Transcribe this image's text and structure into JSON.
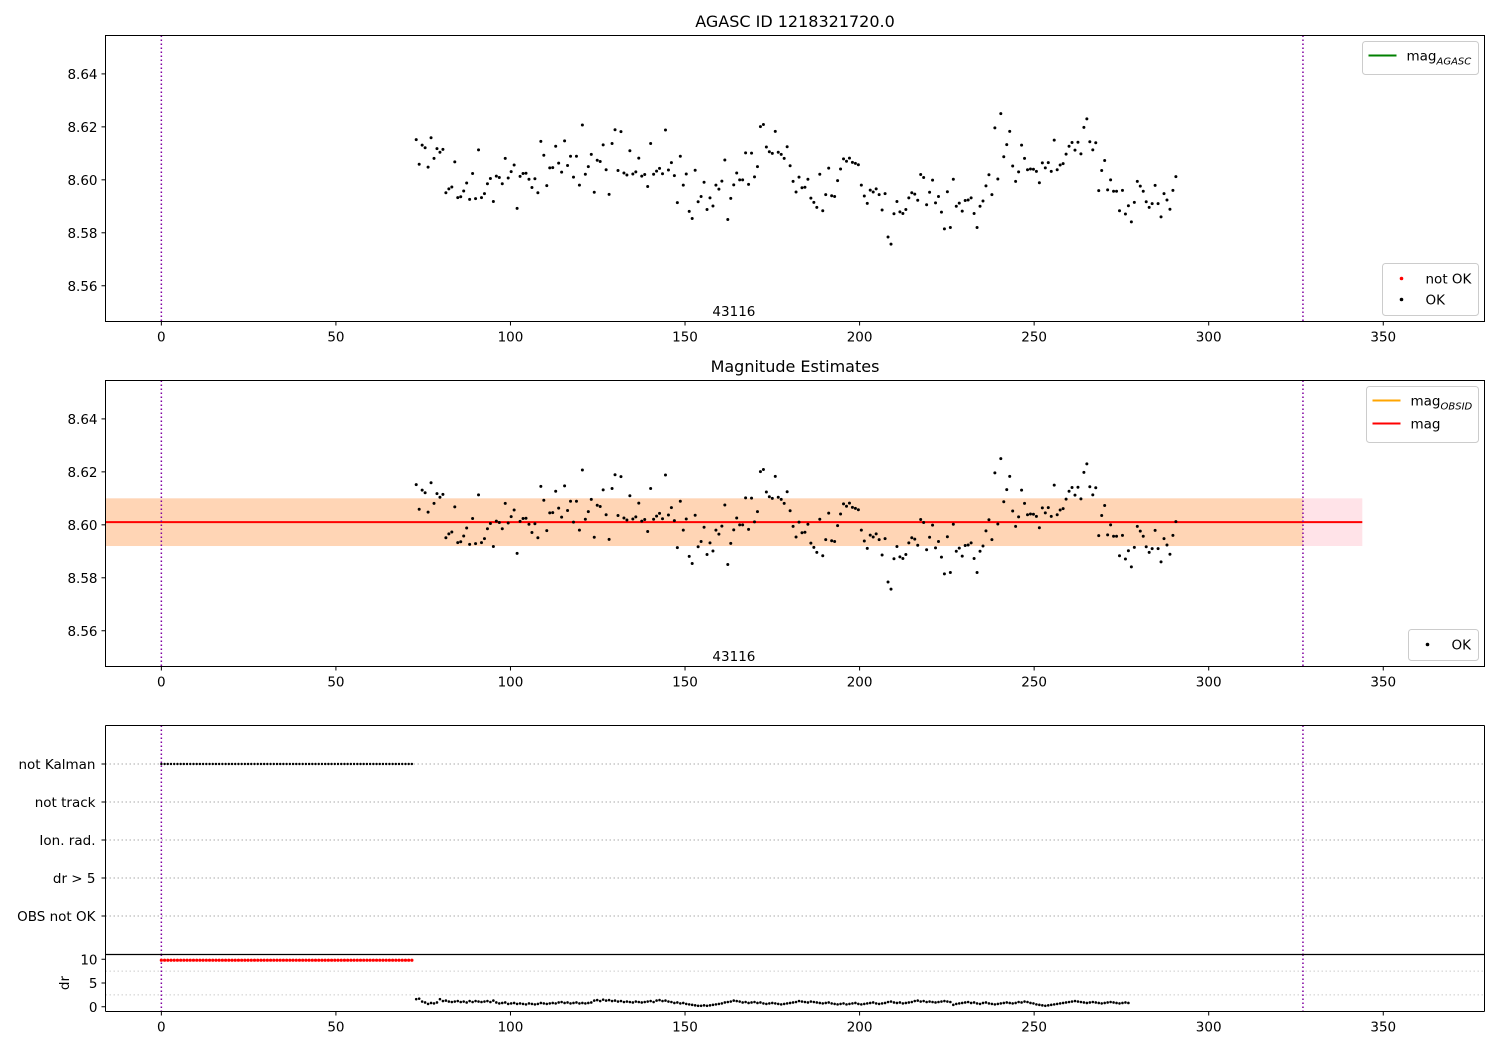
{
  "chart_data": [
    {
      "id": "top",
      "type": "scatter",
      "title": "AGASC ID 1218321720.0",
      "xlim": [
        -16,
        379
      ],
      "ylim": [
        8.5465,
        8.6545
      ],
      "xticks": [
        0,
        50,
        100,
        150,
        200,
        250,
        300,
        350
      ],
      "yticks": [
        8.56,
        8.58,
        8.6,
        8.62,
        8.64
      ],
      "ytick_labels": [
        "8.56",
        "8.58",
        "8.60",
        "8.62",
        "8.64"
      ],
      "vlines": [
        0,
        327
      ],
      "vline_color": "#8000a0",
      "annotation": {
        "text": "43116",
        "x": 164,
        "y": 8.5485
      },
      "legend_lines": [
        {
          "label_main": "mag",
          "label_sub": "AGASC",
          "color": "#008000"
        }
      ],
      "legend_points": [
        {
          "label": "not OK",
          "color": "#ff0000"
        },
        {
          "label": "OK",
          "color": "#000000"
        }
      ],
      "series": [
        {
          "name": "OK",
          "color": "#000000",
          "x_start": 73,
          "x_step": 0.85
        }
      ]
    },
    {
      "id": "middle",
      "type": "scatter",
      "title": "Magnitude Estimates",
      "xlim": [
        -16,
        379
      ],
      "ylim": [
        8.5465,
        8.6545
      ],
      "xticks": [
        0,
        50,
        100,
        150,
        200,
        250,
        300,
        350
      ],
      "yticks": [
        8.56,
        8.58,
        8.6,
        8.62,
        8.64
      ],
      "ytick_labels": [
        "8.56",
        "8.58",
        "8.60",
        "8.62",
        "8.64"
      ],
      "vlines": [
        0,
        327
      ],
      "vline_color": "#8000a0",
      "annotation": {
        "text": "43116",
        "x": 164,
        "y": 8.5485
      },
      "mag_line": {
        "y": 8.601,
        "x_range": [
          -16,
          344
        ],
        "color": "#ff0000"
      },
      "pink_band": {
        "y_range": [
          8.592,
          8.61
        ],
        "x_range": [
          -16,
          344
        ],
        "color": "#ffc0cb"
      },
      "orange_band": {
        "y_range": [
          8.592,
          8.61
        ],
        "x_range": [
          -16,
          327
        ],
        "color": "#ffa500"
      },
      "legend_lines": [
        {
          "label_main": "mag",
          "label_sub": "OBSID",
          "color": "#ffa500"
        },
        {
          "label_main": "mag",
          "label_sub": "",
          "color": "#ff0000"
        }
      ],
      "legend_points": [
        {
          "label": "OK",
          "color": "#000000"
        }
      ],
      "series": [
        {
          "name": "OK",
          "color": "#000000",
          "x_start": 73,
          "x_step": 0.85
        }
      ]
    },
    {
      "id": "flags",
      "type": "scatter",
      "categories": [
        "OBS not OK",
        "dr > 5",
        "Ion. rad.",
        "not track",
        "not Kalman"
      ],
      "xlim": [
        -16,
        379
      ],
      "vlines": [
        0,
        327
      ],
      "flag_points": {
        "category": "not Kalman",
        "x_range": [
          0,
          72.5
        ],
        "x_step": 0.92,
        "color": "#000000"
      }
    },
    {
      "id": "dr",
      "type": "scatter",
      "ylabel": "dr",
      "xlim": [
        -16,
        379
      ],
      "ylim": [
        -1,
        11
      ],
      "xticks": [
        0,
        50,
        100,
        150,
        200,
        250,
        300,
        350
      ],
      "yticks": [
        0,
        5,
        10
      ],
      "ytick_labels": [
        "0",
        "5",
        "10"
      ],
      "vlines": [
        0,
        327
      ],
      "clipped_points": {
        "y": 9.8,
        "x_range": [
          0,
          72.5
        ],
        "x_step": 0.92,
        "color": "#ff0000"
      },
      "series": [
        {
          "name": "dr",
          "color": "#000000",
          "x_start": 73,
          "x_step": 0.85
        }
      ]
    }
  ],
  "mag_values": [
    8.6152,
    8.6059,
    8.6131,
    8.6121,
    8.6048,
    8.6159,
    8.6081,
    8.6118,
    8.6104,
    8.6115,
    8.5951,
    8.5966,
    8.5973,
    8.6068,
    8.5933,
    8.5936,
    8.5958,
    8.5988,
    8.5926,
    8.6024,
    8.5929,
    8.6113,
    8.5933,
    8.5948,
    8.5985,
    8.6005,
    8.5918,
    8.6014,
    8.6009,
    8.5985,
    8.6081,
    8.6007,
    8.6031,
    8.6056,
    8.5892,
    8.6013,
    8.6024,
    8.6025,
    8.6002,
    8.5971,
    8.6004,
    8.5951,
    8.6145,
    8.6093,
    8.5978,
    8.6045,
    8.6046,
    8.6127,
    8.6063,
    8.6029,
    8.6147,
    8.6054,
    8.6089,
    8.601,
    8.6089,
    8.598,
    8.6207,
    8.6021,
    8.605,
    8.6096,
    8.5953,
    8.6074,
    8.6069,
    8.6132,
    8.6038,
    8.5945,
    8.6137,
    8.6189,
    8.6035,
    8.6182,
    8.6026,
    8.6018,
    8.611,
    8.6022,
    8.603,
    8.6082,
    8.6014,
    8.602,
    8.5975,
    8.6137,
    8.6021,
    8.6033,
    8.6043,
    8.6023,
    8.6188,
    8.6037,
    8.6065,
    8.6016,
    8.5914,
    8.6089,
    8.598,
    8.6022,
    8.5881,
    8.5854,
    8.6036,
    8.5917,
    8.5937,
    8.5991,
    8.5888,
    8.5932,
    8.5901,
    8.598,
    8.5965,
    8.5995,
    8.6075,
    8.585,
    8.593,
    8.5981,
    8.6026,
    8.6,
    8.6,
    8.6102,
    8.5983,
    8.6101,
    8.6011,
    8.605,
    8.6201,
    8.6209,
    8.6124,
    8.6106,
    8.61,
    8.6183,
    8.6104,
    8.6096,
    8.6081,
    8.6125,
    8.6053,
    8.5994,
    8.5954,
    8.601,
    8.597,
    8.5972,
    8.6002,
    8.5931,
    8.5915,
    8.5896,
    8.6021,
    8.5883,
    8.5944,
    8.6044,
    8.594,
    8.5937,
    8.5997,
    8.6041,
    8.6079,
    8.607,
    8.6082,
    8.6066,
    8.6062,
    8.6057,
    8.598,
    8.5939,
    8.5911,
    8.5961,
    8.5954,
    8.5966,
    8.5944,
    8.5886,
    8.5948,
    8.5784,
    8.5757,
    8.5872,
    8.5918,
    8.5879,
    8.5873,
    8.5888,
    8.5932,
    8.5951,
    8.5946,
    8.5923,
    8.602,
    8.6009,
    8.5906,
    8.5953,
    8.5999,
    8.5913,
    8.5937,
    8.5878,
    8.5815,
    8.5955,
    8.582,
    8.6002,
    8.59,
    8.5912,
    8.5882,
    8.5922,
    8.5924,
    8.5932,
    8.5873,
    8.582,
    8.59,
    8.592,
    8.5977,
    8.6019,
    8.5944,
    8.6196,
    8.6003,
    8.625,
    8.6087,
    8.6133,
    8.6183,
    8.6052,
    8.5994,
    8.603,
    8.6131,
    8.6081,
    8.6038,
    8.6041,
    8.604,
    8.6032,
    8.5989,
    8.6064,
    8.6045,
    8.6065,
    8.6032,
    8.615,
    8.6038,
    8.6056,
    8.6061,
    8.6097,
    8.6127,
    8.6141,
    8.6112,
    8.6142,
    8.6098,
    8.6198,
    8.623,
    8.6144,
    8.6113,
    8.614,
    8.5959,
    8.6035,
    8.6073,
    8.5962,
    8.6,
    8.5957,
    8.5957,
    8.5883,
    8.596,
    8.5871,
    8.5902,
    8.5841,
    8.5915,
    8.5994,
    8.5976,
    8.5957,
    8.5917,
    8.5896,
    8.591,
    8.5979,
    8.591,
    8.586,
    8.5948,
    8.5924,
    8.5889,
    8.596,
    8.6012
  ],
  "dr_values": [
    1.6,
    1.7,
    1.1,
    0.9,
    0.6,
    0.8,
    0.7,
    0.9,
    1.6,
    1.2,
    1.3,
    1.1,
    1.0,
    1.1,
    1.2,
    1.0,
    1.1,
    0.9,
    1.2,
    1.0,
    1.2,
    1.1,
    1.0,
    1.1,
    1.2,
    1.0,
    1.3,
    0.9,
    0.7,
    0.8,
    0.9,
    0.6,
    0.7,
    0.8,
    0.6,
    0.7,
    0.6,
    0.5,
    0.7,
    0.6,
    0.5,
    0.6,
    0.8,
    0.7,
    0.6,
    0.7,
    0.8,
    0.7,
    0.9,
    1.0,
    0.8,
    0.9,
    0.7,
    0.8,
    0.9,
    0.7,
    0.8,
    0.7,
    0.8,
    0.9,
    1.3,
    1.4,
    1.2,
    1.5,
    1.3,
    1.4,
    1.2,
    1.3,
    1.1,
    1.2,
    1.0,
    1.1,
    1.0,
    0.9,
    1.1,
    1.0,
    0.9,
    1.0,
    1.1,
    1.2,
    1.0,
    1.3,
    1.4,
    1.2,
    1.3,
    1.1,
    1.0,
    0.8,
    0.9,
    0.7,
    0.8,
    0.6,
    0.5,
    0.4,
    0.3,
    0.2,
    0.2,
    0.3,
    0.2,
    0.3,
    0.4,
    0.5,
    0.6,
    0.7,
    0.9,
    1.0,
    1.1,
    1.3,
    1.2,
    1.1,
    0.9,
    1.0,
    0.8,
    0.9,
    1.0,
    0.8,
    0.9,
    0.7,
    0.6,
    0.7,
    0.8,
    0.7,
    0.6,
    0.5,
    0.6,
    0.7,
    0.8,
    0.9,
    1.0,
    1.2,
    1.1,
    1.0,
    0.9,
    1.1,
    1.0,
    0.9,
    0.8,
    0.7,
    0.8,
    0.9,
    0.7,
    0.6,
    0.5,
    0.6,
    0.7,
    0.5,
    0.6,
    0.7,
    0.8,
    0.6,
    0.5,
    0.6,
    0.7,
    0.8,
    0.9,
    0.7,
    0.6,
    0.7,
    0.8,
    1.0,
    1.1,
    0.9,
    0.8,
    0.9,
    0.7,
    0.8,
    0.9,
    1.0,
    1.2,
    1.3,
    1.1,
    1.2,
    1.0,
    1.1,
    1.0,
    0.9,
    1.0,
    1.1,
    1.2,
    1.1,
    1.0,
    0.4,
    0.6,
    0.7,
    0.8,
    0.9,
    1.0,
    0.8,
    0.9,
    0.7,
    0.6,
    0.8,
    0.9,
    0.7,
    0.6,
    0.5,
    0.6,
    0.7,
    0.8,
    0.9,
    0.8,
    0.7,
    0.8,
    1.0,
    0.9,
    1.1,
    1.0,
    0.8,
    0.7,
    0.5,
    0.4,
    0.3,
    0.2,
    0.3,
    0.4,
    0.5,
    0.6,
    0.7,
    0.8,
    0.9,
    1.0,
    1.1,
    1.2,
    1.1,
    1.0,
    0.9,
    0.8,
    0.9,
    1.0,
    0.9,
    0.8,
    0.7,
    0.8,
    0.9,
    1.0,
    0.9,
    0.8,
    0.7,
    0.8,
    0.9,
    0.8
  ]
}
